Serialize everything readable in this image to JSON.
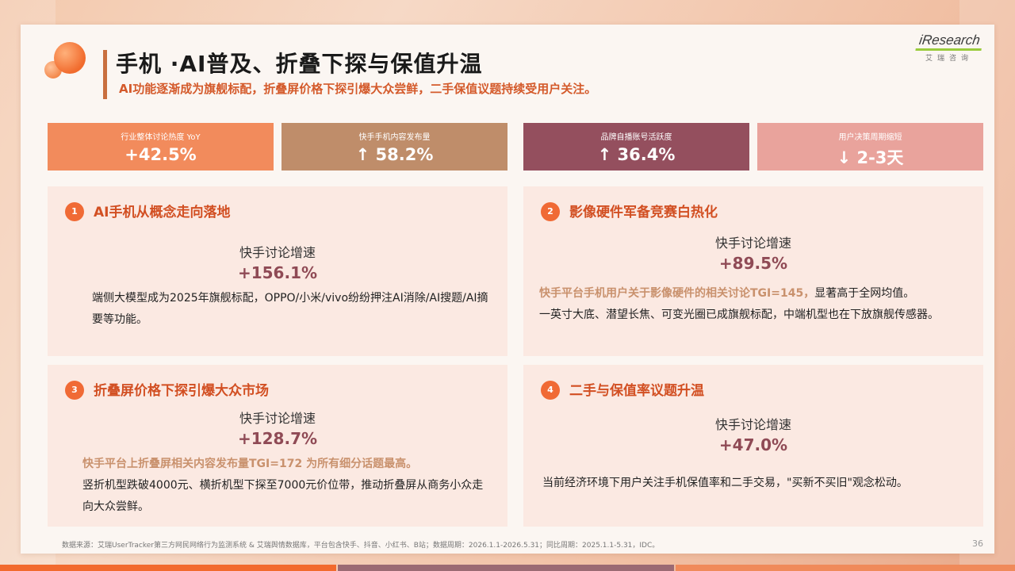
{
  "header": {
    "title": "手机 ·AI普及、折叠下探与保值升温",
    "subtitle": "AI功能逐渐成为旗舰标配，折叠屏价格下探引爆大众尝鲜，二手保值议题持续受用户关注。"
  },
  "brand": {
    "name": "iResearch",
    "sub": "艾瑞咨询"
  },
  "kpis": [
    {
      "label": "行业整体讨论热度 YoY",
      "value": "+42.5%"
    },
    {
      "label": "快手手机内容发布量",
      "value": "↑ 58.2%"
    },
    {
      "label": "品牌自播账号活跃度",
      "value": "↑ 36.4%"
    },
    {
      "label": "用户决策周期缩短",
      "value": "↓ 2-3天"
    }
  ],
  "cards": [
    {
      "number": "1",
      "title": "AI手机从概念走向落地",
      "metric_label": "快手讨论增速",
      "metric_value": "+156.1%",
      "highlight": "",
      "body": "端侧大模型成为2025年旗舰标配，OPPO/小米/vivo纷纷押注AI消除/AI搜题/AI摘要等功能。"
    },
    {
      "number": "2",
      "title": "影像硬件军备竞赛白热化",
      "metric_label": "快手讨论增速",
      "metric_value": "+89.5%",
      "highlight": "快手平台手机用户关于影像硬件的相关讨论TGI=145，",
      "body_after_highlight": "显著高于全网均值。",
      "body": "一英寸大底、潜望长焦、可变光圈已成旗舰标配，中端机型也在下放旗舰传感器。"
    },
    {
      "number": "3",
      "title": "折叠屏价格下探引爆大众市场",
      "metric_label": "快手讨论增速",
      "metric_value": "+128.7%",
      "highlight": "快手平台上折叠屏相关内容发布量TGI=172 为所有细分话题最高。",
      "body": "竖折机型跌破4000元、横折机型下探至7000元价位带，推动折叠屏从商务小众走向大众尝鲜。"
    },
    {
      "number": "4",
      "title": "二手与保值率议题升温",
      "metric_label": "快手讨论增速",
      "metric_value": "+47.0%",
      "highlight": "",
      "body": "当前经济环境下用户关注手机保值率和二手交易，\"买新不买旧\"观念松动。"
    }
  ],
  "footer": {
    "source": "数据来源：艾瑞UserTracker第三方网民网络行为监测系统 & 艾瑞舆情数据库，平台包含快手、抖音、小红书、B站；数据周期：2026.1.1-2026.5.31；同比周期：2025.1.1-5.31，IDC。",
    "page": "36"
  },
  "colors": {
    "accent_orange": "#f06a35",
    "title_red": "#d24f22",
    "metric_value": "#8f4a55",
    "highlight_tan": "#c9916d",
    "kpi1": "#f28b5c",
    "kpi2": "#bf8d6a",
    "kpi3": "#944f5e",
    "kpi4": "#e9a39c"
  }
}
